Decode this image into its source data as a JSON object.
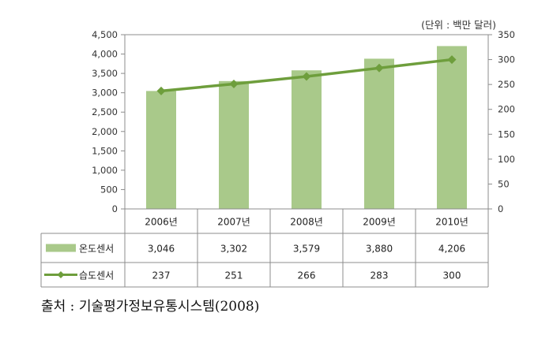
{
  "chart_data": {
    "type": "bar",
    "unit_label": "(단위 : 백만 달러)",
    "categories": [
      "2006년",
      "2007년",
      "2008년",
      "2009년",
      "2010년"
    ],
    "series": [
      {
        "name": "온도센서",
        "type": "bar",
        "axis": "left",
        "color": "#a9c98a",
        "values": [
          3046,
          3302,
          3579,
          3880,
          4206
        ],
        "labels": [
          "3,046",
          "3,302",
          "3,579",
          "3,880",
          "4,206"
        ]
      },
      {
        "name": "습도센서",
        "type": "line",
        "axis": "right",
        "color": "#6e9e3c",
        "values": [
          237,
          251,
          266,
          283,
          300
        ],
        "labels": [
          "237",
          "251",
          "266",
          "283",
          "300"
        ]
      }
    ],
    "left_axis": {
      "ylim": [
        0,
        4500
      ],
      "ticks": [
        0,
        500,
        1000,
        1500,
        2000,
        2500,
        3000,
        3500,
        4000,
        4500
      ],
      "tick_labels": [
        "0",
        "500",
        "1,000",
        "1,500",
        "2,000",
        "2,500",
        "3,000",
        "3,500",
        "4,000",
        "4,500"
      ]
    },
    "right_axis": {
      "ylim": [
        0,
        350
      ],
      "ticks": [
        0,
        50,
        100,
        150,
        200,
        250,
        300,
        350
      ],
      "tick_labels": [
        "0",
        "50",
        "100",
        "150",
        "200",
        "250",
        "300",
        "350"
      ]
    },
    "grid": false,
    "legend": "data-table"
  },
  "source_text": "출처 : 기술평가정보유통시스템(2008)"
}
